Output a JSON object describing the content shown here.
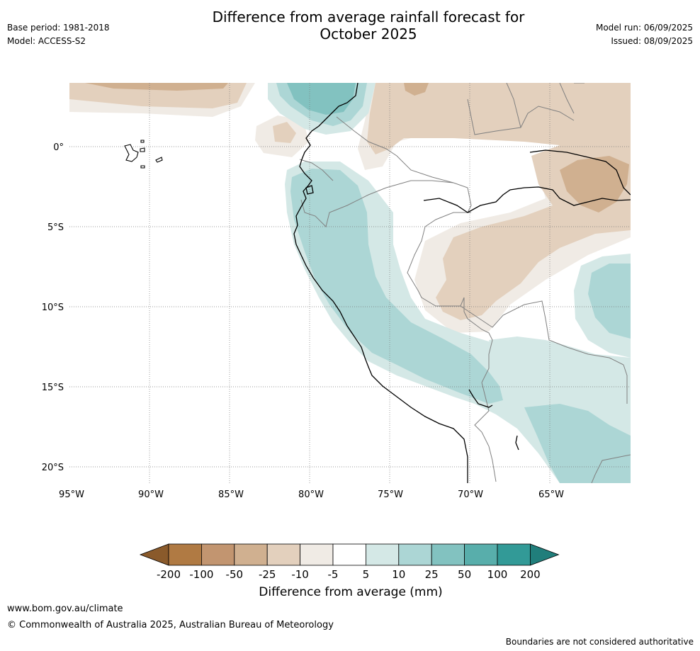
{
  "header": {
    "title_line1": "Difference from average rainfall forecast for",
    "title_line2": "October 2025",
    "base_period": "Base period: 1981-2018",
    "model": "Model: ACCESS-S2",
    "model_run": "Model run: 06/09/2025",
    "issued": "Issued: 08/09/2025"
  },
  "map": {
    "lat_labels": [
      "0°",
      "5°S",
      "10°S",
      "15°S",
      "20°S"
    ],
    "lon_labels": [
      "95°W",
      "90°W",
      "85°W",
      "80°W",
      "75°W",
      "70°W",
      "65°W"
    ],
    "colors": {
      "dry_lt_m200": "#8a5a2b",
      "dry_m200_m100": "#b07a43",
      "dry_m100_m50": "#c29570",
      "dry_m50_m25": "#d0b090",
      "dry_m25_m10": "#e3d0bd",
      "dry_m10_m5": "#f0ebe5",
      "neutral": "#ffffff",
      "wet_5_10": "#d4e8e6",
      "wet_10_25": "#acd6d5",
      "wet_25_50": "#82c2c0",
      "wet_50_100": "#58aeab",
      "wet_100_200": "#329a97",
      "wet_gt_200": "#207e7b"
    }
  },
  "colorbar": {
    "ticks": [
      "-200",
      "-100",
      "-50",
      "-25",
      "-10",
      "-5",
      "5",
      "10",
      "25",
      "50",
      "100",
      "200"
    ],
    "colors": [
      "#b07a43",
      "#c29570",
      "#d0b090",
      "#e3d0bd",
      "#f0ebe5",
      "#ffffff",
      "#d4e8e6",
      "#acd6d5",
      "#82c2c0",
      "#58aeab",
      "#329a97"
    ],
    "under_color": "#8a5a2b",
    "over_color": "#207e7b",
    "label": "Difference from average (mm)"
  },
  "footer": {
    "url": "www.bom.gov.au/climate",
    "copyright": "© Commonwealth of Australia 2025, Australian Bureau of Meteorology",
    "disclaimer": "Boundaries are not considered authoritative"
  }
}
